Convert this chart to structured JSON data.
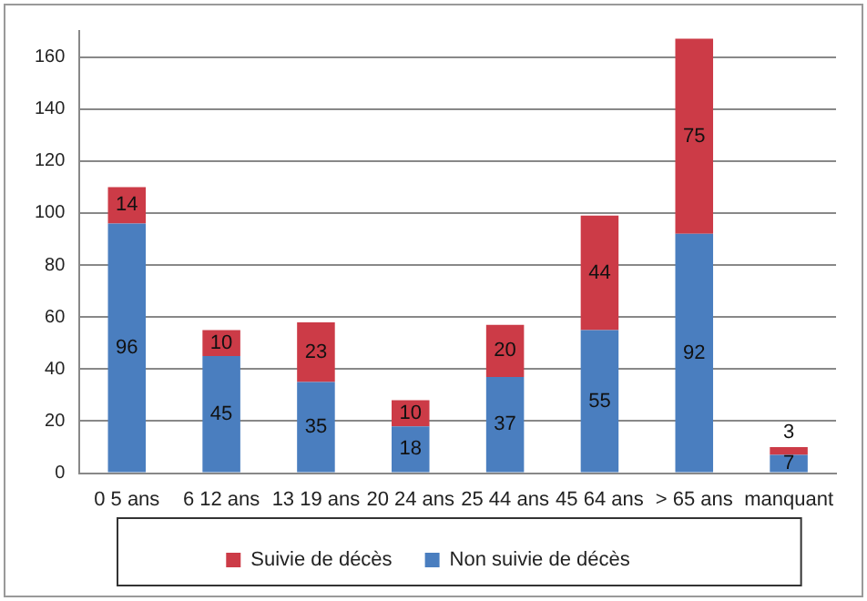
{
  "chart_data": {
    "type": "bar",
    "stacked": true,
    "categories": [
      "0 5 ans",
      "6 12 ans",
      "13 19 ans",
      "20 24 ans",
      "25 44 ans",
      "45 64 ans",
      "> 65 ans",
      "manquant"
    ],
    "series": [
      {
        "name": "Non suivie de décès",
        "color": "#4a7ebf",
        "values": [
          96,
          45,
          35,
          18,
          37,
          55,
          92,
          7
        ]
      },
      {
        "name": "Suivie de décès",
        "color": "#cc3b47",
        "values": [
          14,
          10,
          23,
          10,
          20,
          44,
          75,
          3
        ]
      }
    ],
    "ylim": [
      0,
      170
    ],
    "yticks": [
      0,
      20,
      40,
      60,
      80,
      100,
      120,
      140,
      160
    ],
    "grid": "y",
    "legend": "bottom",
    "data_labels": true
  }
}
